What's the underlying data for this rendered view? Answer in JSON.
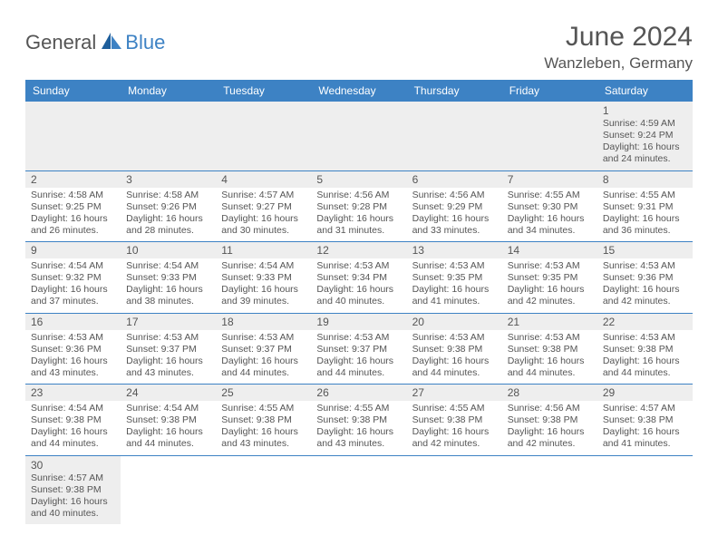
{
  "brand": {
    "part1": "General",
    "part2": "Blue"
  },
  "title": "June 2024",
  "location": "Wanzleben, Germany",
  "colors": {
    "header_bg": "#3d82c4",
    "header_fg": "#ffffff",
    "shade_bg": "#eeeeee",
    "text": "#555555",
    "border": "#3d82c4",
    "logo_accent": "#3d82c4"
  },
  "weekdays": [
    "Sunday",
    "Monday",
    "Tuesday",
    "Wednesday",
    "Thursday",
    "Friday",
    "Saturday"
  ],
  "days": {
    "1": {
      "sunrise": "4:59 AM",
      "sunset": "9:24 PM",
      "dlh": 16,
      "dlm": 24
    },
    "2": {
      "sunrise": "4:58 AM",
      "sunset": "9:25 PM",
      "dlh": 16,
      "dlm": 26
    },
    "3": {
      "sunrise": "4:58 AM",
      "sunset": "9:26 PM",
      "dlh": 16,
      "dlm": 28
    },
    "4": {
      "sunrise": "4:57 AM",
      "sunset": "9:27 PM",
      "dlh": 16,
      "dlm": 30
    },
    "5": {
      "sunrise": "4:56 AM",
      "sunset": "9:28 PM",
      "dlh": 16,
      "dlm": 31
    },
    "6": {
      "sunrise": "4:56 AM",
      "sunset": "9:29 PM",
      "dlh": 16,
      "dlm": 33
    },
    "7": {
      "sunrise": "4:55 AM",
      "sunset": "9:30 PM",
      "dlh": 16,
      "dlm": 34
    },
    "8": {
      "sunrise": "4:55 AM",
      "sunset": "9:31 PM",
      "dlh": 16,
      "dlm": 36
    },
    "9": {
      "sunrise": "4:54 AM",
      "sunset": "9:32 PM",
      "dlh": 16,
      "dlm": 37
    },
    "10": {
      "sunrise": "4:54 AM",
      "sunset": "9:33 PM",
      "dlh": 16,
      "dlm": 38
    },
    "11": {
      "sunrise": "4:54 AM",
      "sunset": "9:33 PM",
      "dlh": 16,
      "dlm": 39
    },
    "12": {
      "sunrise": "4:53 AM",
      "sunset": "9:34 PM",
      "dlh": 16,
      "dlm": 40
    },
    "13": {
      "sunrise": "4:53 AM",
      "sunset": "9:35 PM",
      "dlh": 16,
      "dlm": 41
    },
    "14": {
      "sunrise": "4:53 AM",
      "sunset": "9:35 PM",
      "dlh": 16,
      "dlm": 42
    },
    "15": {
      "sunrise": "4:53 AM",
      "sunset": "9:36 PM",
      "dlh": 16,
      "dlm": 42
    },
    "16": {
      "sunrise": "4:53 AM",
      "sunset": "9:36 PM",
      "dlh": 16,
      "dlm": 43
    },
    "17": {
      "sunrise": "4:53 AM",
      "sunset": "9:37 PM",
      "dlh": 16,
      "dlm": 43
    },
    "18": {
      "sunrise": "4:53 AM",
      "sunset": "9:37 PM",
      "dlh": 16,
      "dlm": 44
    },
    "19": {
      "sunrise": "4:53 AM",
      "sunset": "9:37 PM",
      "dlh": 16,
      "dlm": 44
    },
    "20": {
      "sunrise": "4:53 AM",
      "sunset": "9:38 PM",
      "dlh": 16,
      "dlm": 44
    },
    "21": {
      "sunrise": "4:53 AM",
      "sunset": "9:38 PM",
      "dlh": 16,
      "dlm": 44
    },
    "22": {
      "sunrise": "4:53 AM",
      "sunset": "9:38 PM",
      "dlh": 16,
      "dlm": 44
    },
    "23": {
      "sunrise": "4:54 AM",
      "sunset": "9:38 PM",
      "dlh": 16,
      "dlm": 44
    },
    "24": {
      "sunrise": "4:54 AM",
      "sunset": "9:38 PM",
      "dlh": 16,
      "dlm": 44
    },
    "25": {
      "sunrise": "4:55 AM",
      "sunset": "9:38 PM",
      "dlh": 16,
      "dlm": 43
    },
    "26": {
      "sunrise": "4:55 AM",
      "sunset": "9:38 PM",
      "dlh": 16,
      "dlm": 43
    },
    "27": {
      "sunrise": "4:55 AM",
      "sunset": "9:38 PM",
      "dlh": 16,
      "dlm": 42
    },
    "28": {
      "sunrise": "4:56 AM",
      "sunset": "9:38 PM",
      "dlh": 16,
      "dlm": 42
    },
    "29": {
      "sunrise": "4:57 AM",
      "sunset": "9:38 PM",
      "dlh": 16,
      "dlm": 41
    },
    "30": {
      "sunrise": "4:57 AM",
      "sunset": "9:38 PM",
      "dlh": 16,
      "dlm": 40
    }
  },
  "grid": [
    [
      null,
      null,
      null,
      null,
      null,
      null,
      1
    ],
    [
      2,
      3,
      4,
      5,
      6,
      7,
      8
    ],
    [
      9,
      10,
      11,
      12,
      13,
      14,
      15
    ],
    [
      16,
      17,
      18,
      19,
      20,
      21,
      22
    ],
    [
      23,
      24,
      25,
      26,
      27,
      28,
      29
    ],
    [
      30,
      null,
      null,
      null,
      null,
      null,
      null
    ]
  ],
  "labels": {
    "sunrise": "Sunrise:",
    "sunset": "Sunset:",
    "daylight": "Daylight:",
    "hours": "hours",
    "and": "and",
    "minutes": "minutes."
  }
}
